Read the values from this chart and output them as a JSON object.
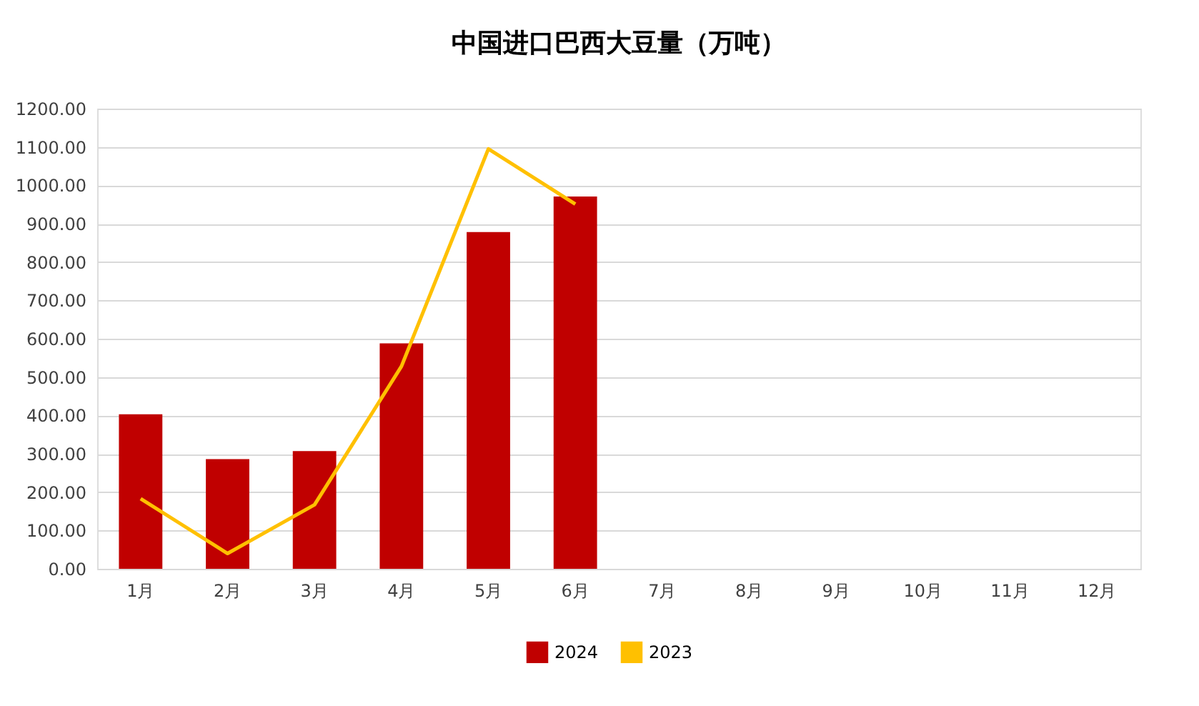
{
  "chart_data": {
    "type": "bar",
    "title": "中国进口巴西大豆量（万吨）",
    "categories": [
      "1月",
      "2月",
      "3月",
      "4月",
      "5月",
      "6月",
      "7月",
      "8月",
      "9月",
      "10月",
      "11月",
      "12月"
    ],
    "series": [
      {
        "name": "2024",
        "color": "#c00000",
        "values": [
          403,
          286,
          307,
          588,
          878,
          971,
          null,
          null,
          null,
          null,
          null,
          null
        ]
      },
      {
        "name": "2023",
        "type": "line",
        "color": "#ffc000",
        "values": [
          183,
          40,
          167,
          528,
          1095,
          951,
          null,
          null,
          null,
          null,
          null,
          null
        ]
      }
    ],
    "ylim": [
      0,
      1200
    ],
    "yticks": [
      {
        "value": 0,
        "label": "0.00"
      },
      {
        "value": 100,
        "label": "100.00"
      },
      {
        "value": 200,
        "label": "200.00"
      },
      {
        "value": 300,
        "label": "300.00"
      },
      {
        "value": 400,
        "label": "400.00"
      },
      {
        "value": 500,
        "label": "500.00"
      },
      {
        "value": 600,
        "label": "600.00"
      },
      {
        "value": 700,
        "label": "700.00"
      },
      {
        "value": 800,
        "label": "800.00"
      },
      {
        "value": 900,
        "label": "900.00"
      },
      {
        "value": 1000,
        "label": "1000.00"
      },
      {
        "value": 1100,
        "label": "1100.00"
      },
      {
        "value": 1200,
        "label": "1200.00"
      }
    ],
    "grid": "y",
    "legend": "bottom"
  }
}
